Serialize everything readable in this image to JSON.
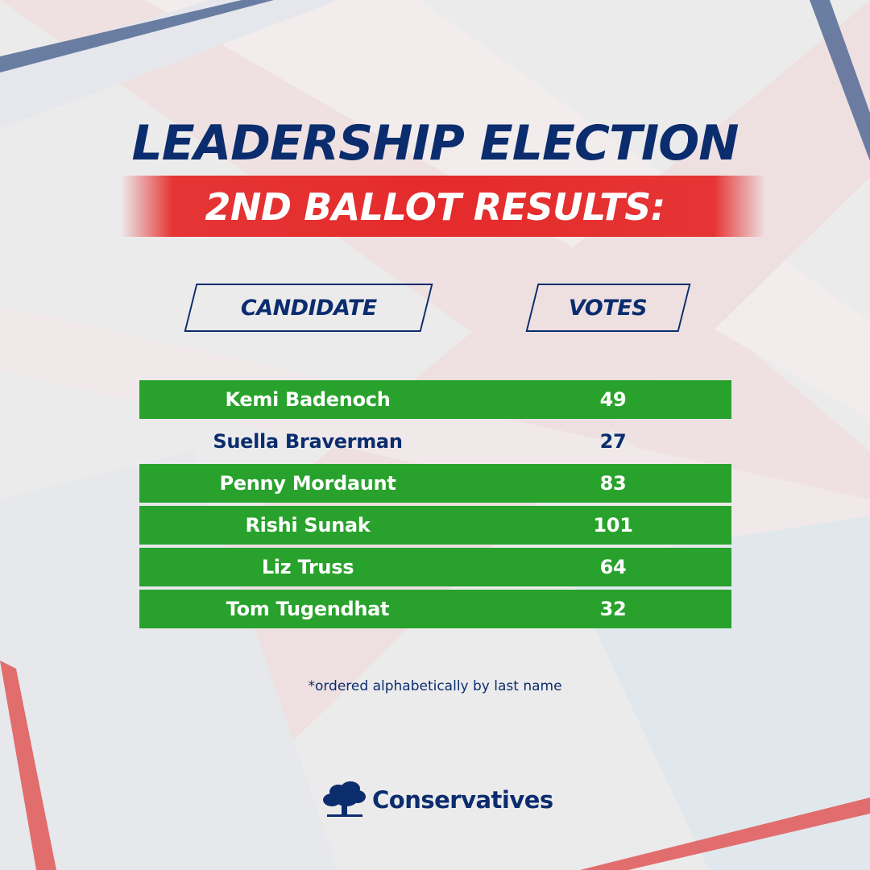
{
  "title": "LEADERSHIP ELECTION",
  "subtitle": "2ND BALLOT RESULTS:",
  "headers": {
    "candidate": "CANDIDATE",
    "votes": "VOTES"
  },
  "rows": [
    {
      "name": "Kemi Badenoch",
      "votes": "49",
      "highlighted": true
    },
    {
      "name": "Suella Braverman",
      "votes": "27",
      "highlighted": false
    },
    {
      "name": "Penny Mordaunt",
      "votes": "83",
      "highlighted": true
    },
    {
      "name": "Rishi Sunak",
      "votes": "101",
      "highlighted": true
    },
    {
      "name": "Liz Truss",
      "votes": "64",
      "highlighted": true
    },
    {
      "name": "Tom Tugendhat",
      "votes": "32",
      "highlighted": true
    }
  ],
  "footnote": "*ordered alphabetically by last name",
  "logo": {
    "text": "Conservatives",
    "icon": "oak-tree-icon"
  },
  "colors": {
    "navy": "#0b2d6e",
    "red": "#e52b2b",
    "green": "#28a22c",
    "background": "#ece9ea"
  }
}
